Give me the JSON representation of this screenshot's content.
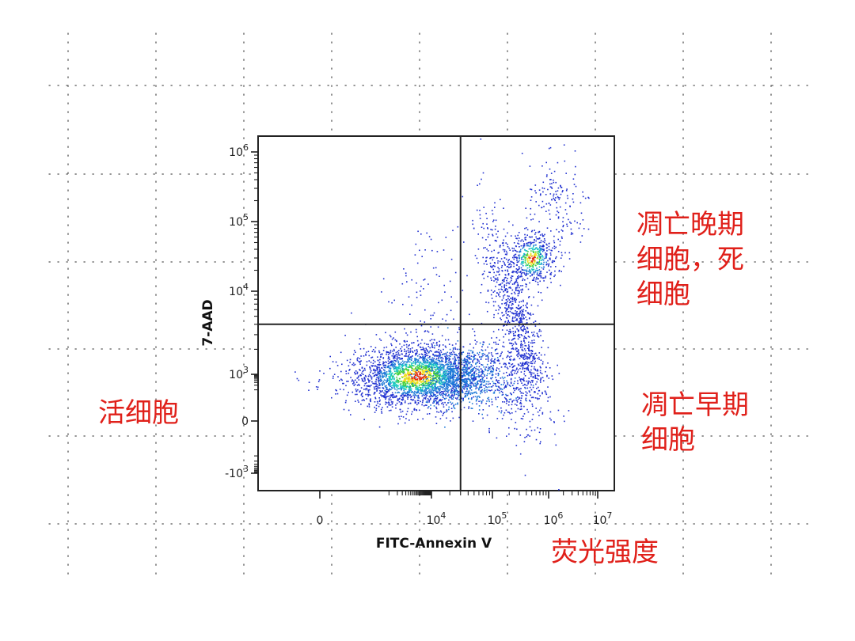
{
  "chart_data": {
    "type": "scatter",
    "subtype": "flow-cytometry density dot plot with quadrant gate",
    "x_scale": "biexponential",
    "y_scale": "biexponential",
    "xlabel": "FITC-Annexin V",
    "ylabel": "7-AAD",
    "x_ticks": [
      {
        "value": 0,
        "base": "0",
        "exp": ""
      },
      {
        "value": 10000,
        "base": "10",
        "exp": "4"
      },
      {
        "value": 100000,
        "base": "10",
        "exp": "5"
      },
      {
        "value": 1000000,
        "base": "10",
        "exp": "6"
      },
      {
        "value": 10000000,
        "base": "10",
        "exp": "7"
      }
    ],
    "y_ticks": [
      {
        "value": -1000,
        "base": "-10",
        "exp": "3"
      },
      {
        "value": 0,
        "base": "0",
        "exp": ""
      },
      {
        "value": 1000,
        "base": "10",
        "exp": "3"
      },
      {
        "value": 10000,
        "base": "10",
        "exp": "4"
      },
      {
        "value": 100000,
        "base": "10",
        "exp": "5"
      },
      {
        "value": 1000000,
        "base": "10",
        "exp": "6"
      }
    ],
    "quadrant_gate": {
      "x": 30000,
      "y": 4000
    },
    "populations": [
      {
        "quadrant": "lower-left",
        "center": {
          "x": 3000,
          "y": 800
        },
        "relative_density": "very high"
      },
      {
        "quadrant": "lower-right",
        "center": {
          "x": 250000,
          "y": 400
        },
        "relative_density": "low"
      },
      {
        "quadrant": "upper-right",
        "center": {
          "x": 500000,
          "y": 30000
        },
        "relative_density": "medium"
      },
      {
        "quadrant": "upper-left",
        "center": {
          "x": 8000,
          "y": 8000
        },
        "relative_density": "sparse"
      }
    ],
    "density_colors": [
      "#2030d0",
      "#1e7ad8",
      "#17c8c0",
      "#3fcf3f",
      "#f0e020",
      "#e02a10"
    ],
    "grid": "dotted"
  },
  "annotations": {
    "late_apoptosis_line1": "凋亡晚期",
    "late_apoptosis_line2": "细胞，死",
    "late_apoptosis_line3": "细胞",
    "early_apoptosis_line1": "凋亡早期",
    "early_apoptosis_line2": "细胞",
    "live_cells": "活细胞",
    "fluorescence_intensity": "荧光强度"
  },
  "colors": {
    "annotation": "#e0201a",
    "axis": "#222222",
    "grid_dots": "#555555"
  }
}
